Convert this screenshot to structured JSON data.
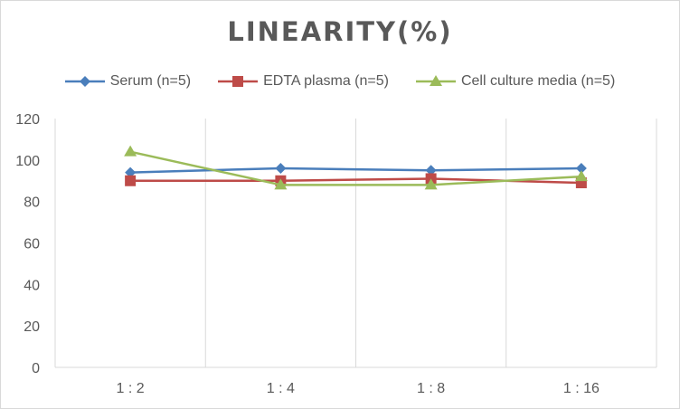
{
  "chart_data": {
    "type": "line",
    "title": "LINEARITY(%)",
    "categories": [
      "1:2",
      "1:4",
      "1:8",
      "1:16"
    ],
    "ylim": [
      0,
      120
    ],
    "yticks": [
      0,
      20,
      40,
      60,
      80,
      100,
      120
    ],
    "grid": "vertical",
    "legend_position": "top",
    "series": [
      {
        "name": "Serum (n=5)",
        "values": [
          94,
          96,
          95,
          96
        ],
        "color": "#4a7ebb",
        "marker": "diamond"
      },
      {
        "name": "EDTA plasma (n=5)",
        "values": [
          90,
          90,
          91,
          89
        ],
        "color": "#be4b48",
        "marker": "square"
      },
      {
        "name": "Cell culture media (n=5)",
        "values": [
          104,
          88,
          88,
          92
        ],
        "color": "#9bbb59",
        "marker": "triangle"
      }
    ]
  }
}
